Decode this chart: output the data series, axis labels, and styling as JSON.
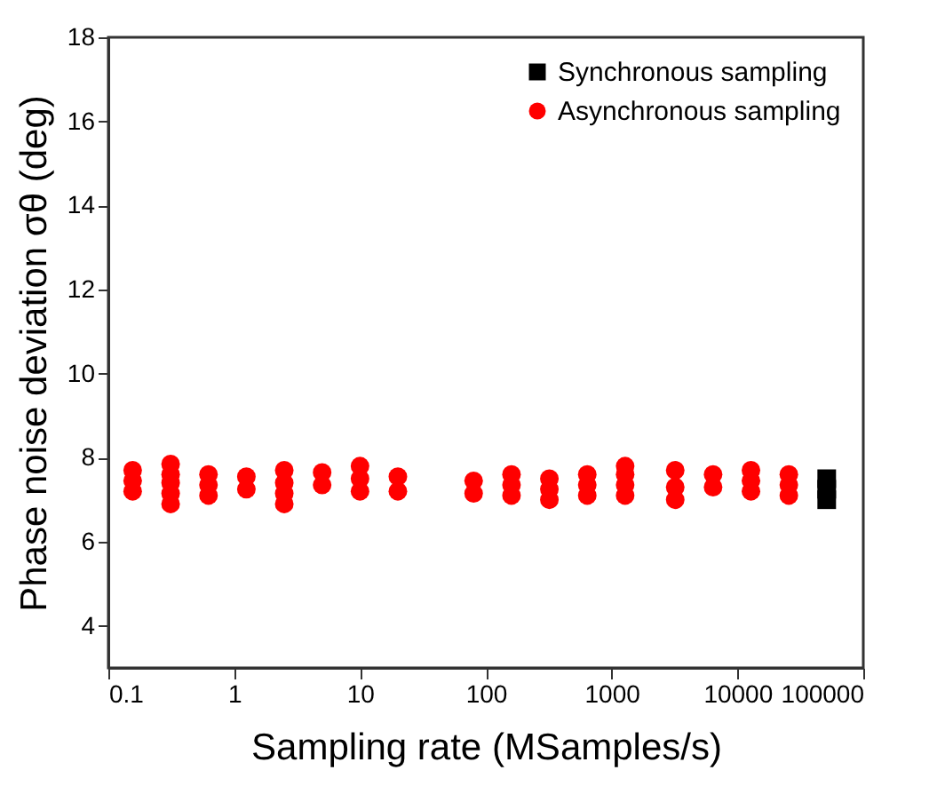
{
  "chart_data": {
    "type": "scatter",
    "xlabel": "Sampling rate (MSamples/s)",
    "ylabel": "Phase noise deviation σθ (deg)",
    "log": "x",
    "xlim": [
      0.1,
      100000
    ],
    "xticks": [
      0.1,
      1,
      10,
      100,
      1000,
      10000,
      100000
    ],
    "ylim": [
      3,
      18
    ],
    "yticks": [
      4,
      6,
      8,
      10,
      12,
      14,
      16,
      18
    ],
    "grid": false,
    "legend": "top right",
    "series": [
      {
        "name": "Synchronous sampling",
        "color": "#000000",
        "marker": "square",
        "x": [
          51200,
          51200,
          51200
        ],
        "values": [
          7.0,
          7.25,
          7.5
        ]
      },
      {
        "name": "Asynchronous sampling",
        "color": "#ff0000",
        "marker": "circle",
        "x": [
          0.156,
          0.156,
          0.156,
          0.3125,
          0.3125,
          0.3125,
          0.3125,
          0.3125,
          0.625,
          0.625,
          0.625,
          1.25,
          1.25,
          2.5,
          2.5,
          2.5,
          2.5,
          5,
          5,
          10,
          10,
          10,
          20,
          20,
          80,
          80,
          160,
          160,
          160,
          320,
          320,
          320,
          640,
          640,
          640,
          1280,
          1280,
          1280,
          1280,
          3200,
          3200,
          3200,
          6400,
          6400,
          12800,
          12800,
          12800,
          25600,
          25600,
          25600
        ],
        "values": [
          7.2,
          7.45,
          7.7,
          6.9,
          7.15,
          7.4,
          7.6,
          7.85,
          7.1,
          7.35,
          7.6,
          7.25,
          7.55,
          6.9,
          7.15,
          7.4,
          7.7,
          7.35,
          7.65,
          7.2,
          7.5,
          7.8,
          7.2,
          7.55,
          7.15,
          7.45,
          7.1,
          7.35,
          7.6,
          7.0,
          7.25,
          7.5,
          7.1,
          7.35,
          7.6,
          7.1,
          7.35,
          7.6,
          7.8,
          7.0,
          7.3,
          7.7,
          7.3,
          7.6,
          7.2,
          7.45,
          7.7,
          7.1,
          7.35,
          7.6
        ]
      }
    ]
  }
}
